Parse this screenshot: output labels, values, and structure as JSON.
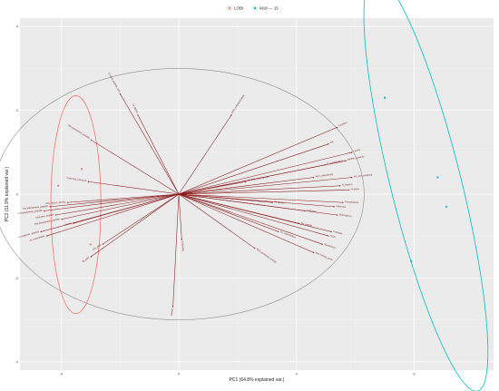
{
  "chart_data": {
    "type": "scatter",
    "title": "",
    "xlabel": "PC1 (64.8% explained var.)",
    "ylabel": "PC2 (11.9% explained var.)",
    "xlim": [
      -5.4,
      10.7
    ],
    "ylim": [
      -4.2,
      4.2
    ],
    "x_ticks": [
      -4,
      0,
      4,
      8
    ],
    "y_ticks": [
      -4,
      -2,
      0,
      2,
      4
    ],
    "grid": true,
    "legend_position": "top",
    "series": [
      {
        "name": "LOBI",
        "color": "#F8766D",
        "points": [
          [
            -4.1,
            0.2
          ],
          [
            -3.3,
            0.6
          ],
          [
            -3.0,
            -1.2
          ]
        ],
        "ellipse": {
          "cx": -3.5,
          "cy": -0.25,
          "rx": 0.85,
          "ry": 2.6,
          "angle": 0
        }
      },
      {
        "name": "M18 --- 15",
        "color": "#00BFC4",
        "points": [
          [
            7.0,
            2.3
          ],
          [
            8.8,
            0.4
          ],
          [
            9.1,
            -0.3
          ],
          [
            7.9,
            -1.6
          ]
        ],
        "ellipse": {
          "cx": 8.4,
          "cy": 0.25,
          "rx": 1.2,
          "ry": 5.1,
          "angle": -14
        }
      }
    ],
    "circle_of_correlation": {
      "cx": 0,
      "cy": 0,
      "rx": 6.3,
      "ry": 3.0
    },
    "loadings": [
      {
        "x": -4.6,
        "y": -0.4,
        "label": "Lo polystyrene_peptide"
      },
      {
        "x": -4.4,
        "y": -0.3,
        "label": "Gly polystyrene_peptide"
      },
      {
        "x": -4.2,
        "y": -0.5,
        "label": "Total prot. peptide"
      },
      {
        "x": -4.0,
        "y": -0.6,
        "label": "Hist polystyrene_peptide"
      },
      {
        "x": -3.8,
        "y": -0.2,
        "label": "Abs_lipase_activity"
      },
      {
        "x": -4.7,
        "y": -0.9,
        "label": "Lo polyester_peptide"
      },
      {
        "x": -4.5,
        "y": -1.0,
        "label": "Ac extracellular"
      },
      {
        "x": -3.1,
        "y": 0.3,
        "label": "Cleft Ptot_extracell"
      },
      {
        "x": -3.0,
        "y": 1.3,
        "label": "Bst polystyrene_peptide"
      },
      {
        "x": -3.0,
        "y": -1.5,
        "label": "Bt_poly"
      },
      {
        "x": -2.6,
        "y": -1.2,
        "label": "Ost_pept"
      },
      {
        "x": -3.6,
        "y": -0.7,
        "label": "Gelatin"
      },
      {
        "x": -2.0,
        "y": 2.4,
        "label": "Cl Cleft_peptide_prot"
      },
      {
        "x": -1.4,
        "y": 1.9,
        "label": "Le_lipase"
      },
      {
        "x": -0.2,
        "y": -2.7,
        "label": "DNase"
      },
      {
        "x": 0.1,
        "y": -1.1,
        "label": "Chitinase"
      },
      {
        "x": 1.8,
        "y": 1.9,
        "label": "EPS_polysaccharide"
      },
      {
        "x": 2.6,
        "y": -1.3,
        "label": "Ecto_protease_activity"
      },
      {
        "x": 3.4,
        "y": -0.9,
        "label": "Fe_siderophore"
      },
      {
        "x": 2.3,
        "y": 0.3,
        "label": "Es Cleft_siderophore"
      },
      {
        "x": 4.1,
        "y": -0.7,
        "label": "Re_pellicle"
      },
      {
        "x": 4.6,
        "y": -1.4,
        "label": "Mot Pellicle_swim"
      },
      {
        "x": 4.9,
        "y": -1.2,
        "label": "Bacteriocin"
      },
      {
        "x": 5.2,
        "y": -0.9,
        "label": "Protease"
      },
      {
        "x": 5.4,
        "y": -0.5,
        "label": "Siderophore"
      },
      {
        "x": 5.6,
        "y": -0.2,
        "label": "Phosphatase"
      },
      {
        "x": 5.8,
        "y": 0.1,
        "label": "Phytase"
      },
      {
        "x": 5.9,
        "y": 0.4,
        "label": "Am_pro_protease"
      },
      {
        "x": 5.7,
        "y": 0.8,
        "label": "Biofilm_capacity"
      },
      {
        "x": 5.9,
        "y": 1.0,
        "label": "Lipase"
      },
      {
        "x": 5.4,
        "y": 1.6,
        "label": "Amylase"
      },
      {
        "x": 5.1,
        "y": 1.2,
        "label": "IAA"
      },
      {
        "x": 4.6,
        "y": 0.4,
        "label": "ACC_deaminase"
      },
      {
        "x": 4.3,
        "y": -0.4,
        "label": "Cellulase"
      },
      {
        "x": 3.2,
        "y": -0.2,
        "label": "Pectinase"
      },
      {
        "x": 5.1,
        "y": -1.0,
        "label": "HCN"
      },
      {
        "x": 5.3,
        "y": -0.3,
        "label": "Xylanase"
      },
      {
        "x": 5.5,
        "y": 0.2,
        "label": "N_fixation"
      },
      {
        "x": 5.0,
        "y": 0.7,
        "label": "P_solubilization"
      }
    ]
  }
}
